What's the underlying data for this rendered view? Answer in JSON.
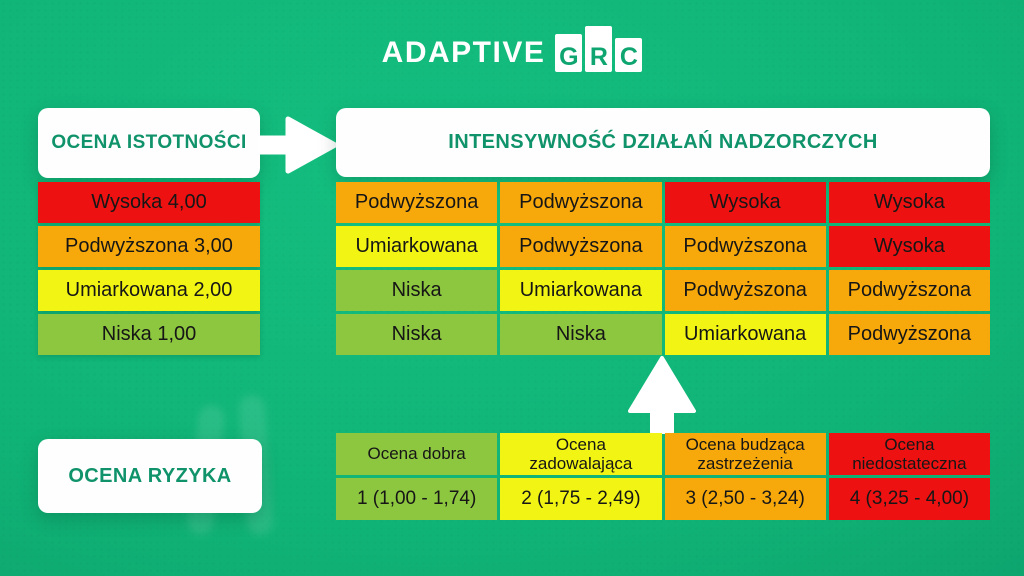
{
  "logo": {
    "brand_text": "ADAPTIVE",
    "letters": [
      "G",
      "R",
      "C"
    ]
  },
  "colors": {
    "background_green": "#10b376",
    "brand_green": "#10936a",
    "red": "#ee1111",
    "orange": "#f7a80b",
    "yellow": "#f2f513",
    "light_green": "#8dc63f",
    "white": "#fdfefd",
    "cell_text": "#161616"
  },
  "icons": {
    "flow_right": "arrow-right",
    "flow_up": "arrow-up"
  },
  "significance_panel": {
    "title": "OCENA ISTOTNOŚCI",
    "rows": [
      {
        "label": "Wysoka 4,00",
        "color": "red"
      },
      {
        "label": "Podwyższona 3,00",
        "color": "orange"
      },
      {
        "label": "Umiarkowana 2,00",
        "color": "yellow"
      },
      {
        "label": "Niska 1,00",
        "color": "light_green"
      }
    ]
  },
  "supervision_matrix": {
    "title": "INTENSYWNOŚĆ DZIAŁAŃ NADZORCZYCH",
    "rows": [
      [
        {
          "label": "Podwyższona",
          "color": "orange"
        },
        {
          "label": "Podwyższona",
          "color": "orange"
        },
        {
          "label": "Wysoka",
          "color": "red"
        },
        {
          "label": "Wysoka",
          "color": "red"
        }
      ],
      [
        {
          "label": "Umiarkowana",
          "color": "yellow"
        },
        {
          "label": "Podwyższona",
          "color": "orange"
        },
        {
          "label": "Podwyższona",
          "color": "orange"
        },
        {
          "label": "Wysoka",
          "color": "red"
        }
      ],
      [
        {
          "label": "Niska",
          "color": "light_green"
        },
        {
          "label": "Umiarkowana",
          "color": "yellow"
        },
        {
          "label": "Podwyższona",
          "color": "orange"
        },
        {
          "label": "Podwyższona",
          "color": "orange"
        }
      ],
      [
        {
          "label": "Niska",
          "color": "light_green"
        },
        {
          "label": "Niska",
          "color": "light_green"
        },
        {
          "label": "Umiarkowana",
          "color": "yellow"
        },
        {
          "label": "Podwyższona",
          "color": "orange"
        }
      ]
    ]
  },
  "risk_panel": {
    "title": "OCENA RYZYKA"
  },
  "risk_scale": {
    "columns": [
      {
        "header": "Ocena dobra",
        "range": "1 (1,00 - 1,74)",
        "color": "light_green"
      },
      {
        "header": "Ocena zadowalająca",
        "range": "2 (1,75 - 2,49)",
        "color": "yellow"
      },
      {
        "header": "Ocena budząca zastrzeżenia",
        "range": "3 (2,50 - 3,24)",
        "color": "orange"
      },
      {
        "header": "Ocena niedostateczna",
        "range": "4 (3,25 - 4,00)",
        "color": "red"
      }
    ]
  }
}
